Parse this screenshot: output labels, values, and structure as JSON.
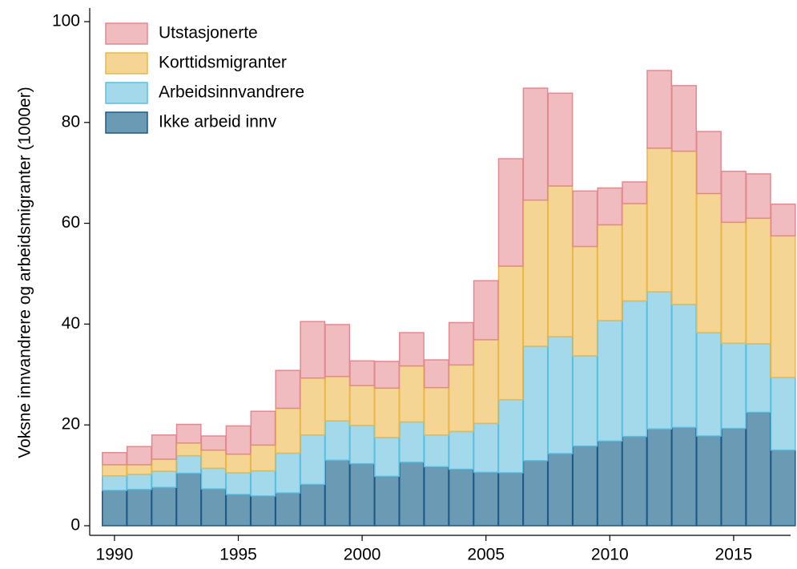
{
  "chart_data": {
    "type": "stacked_bar",
    "y_label": "Voksne innvandrere og arbeidsmigranter (1000er)",
    "x": [
      1990,
      1991,
      1992,
      1993,
      1994,
      1995,
      1996,
      1997,
      1998,
      1999,
      2000,
      2001,
      2002,
      2003,
      2004,
      2005,
      2006,
      2007,
      2008,
      2009,
      2010,
      2011,
      2012,
      2013,
      2014,
      2015,
      2016,
      2017
    ],
    "series": [
      {
        "name": "Ikke arbeid innv",
        "color": "#6a9ab4",
        "edge": "#1d5a85",
        "values": [
          7.0,
          7.2,
          7.6,
          10.4,
          7.3,
          6.2,
          5.9,
          6.5,
          8.2,
          13.0,
          12.3,
          9.8,
          12.6,
          11.7,
          11.2,
          10.6,
          10.5,
          12.9,
          14.3,
          15.8,
          16.8,
          17.7,
          19.2,
          19.5,
          17.8,
          19.3,
          22.5,
          15.0
        ]
      },
      {
        "name": "Arbeidsinnvandrere",
        "color": "#a3d9ea",
        "edge": "#5bbfe0",
        "values": [
          2.9,
          3.0,
          3.2,
          3.5,
          4.1,
          4.3,
          5.0,
          7.9,
          9.8,
          7.8,
          7.6,
          7.7,
          8.0,
          6.3,
          7.5,
          9.7,
          14.5,
          22.7,
          23.2,
          17.9,
          23.9,
          26.9,
          27.2,
          24.4,
          20.5,
          16.9,
          13.6,
          14.4
        ]
      },
      {
        "name": "Korttidsmigranter",
        "color": "#f4d594",
        "edge": "#e8b84a",
        "values": [
          2.2,
          1.9,
          2.4,
          2.5,
          3.6,
          3.7,
          5.1,
          8.9,
          11.3,
          8.8,
          7.9,
          9.8,
          11.1,
          9.4,
          13.2,
          16.6,
          26.5,
          29.0,
          29.9,
          21.7,
          19.0,
          19.3,
          28.5,
          30.4,
          27.6,
          24.0,
          24.9,
          28.1
        ]
      },
      {
        "name": "Utstasjonerte",
        "color": "#f0bcbf",
        "edge": "#e08a90",
        "values": [
          2.4,
          3.6,
          4.8,
          3.7,
          2.8,
          5.6,
          6.7,
          7.5,
          11.2,
          10.3,
          4.9,
          5.3,
          6.6,
          5.5,
          8.4,
          11.7,
          21.3,
          22.2,
          18.4,
          11.0,
          7.3,
          4.3,
          15.4,
          13.0,
          12.3,
          10.1,
          8.8,
          6.3
        ]
      }
    ],
    "xlim": [
      1989,
      2017.3
    ],
    "xticks": [
      1990,
      1995,
      2000,
      2005,
      2010,
      2015
    ],
    "ylim": [
      0,
      100
    ],
    "yticks": [
      0,
      20,
      40,
      60,
      80,
      100
    ],
    "legend": "upper-left"
  }
}
